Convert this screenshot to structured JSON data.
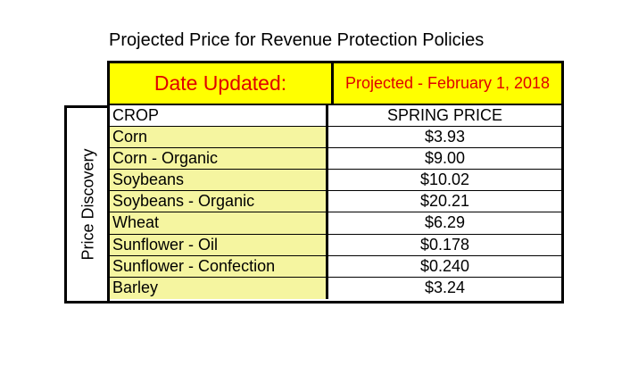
{
  "title": "Projected Price for Revenue Protection Policies",
  "header": {
    "date_label": "Date Updated:",
    "date_value": "Projected - February 1, 2018"
  },
  "side_label": "Price Discovery",
  "table": {
    "columns": [
      "CROP",
      "SPRING PRICE"
    ],
    "rows": [
      {
        "crop": "Corn",
        "price": "$3.93"
      },
      {
        "crop": "Corn - Organic",
        "price": "$9.00"
      },
      {
        "crop": "Soybeans",
        "price": "$10.02"
      },
      {
        "crop": "Soybeans - Organic",
        "price": "$20.21"
      },
      {
        "crop": "Wheat",
        "price": "$6.29"
      },
      {
        "crop": "Sunflower - Oil",
        "price": "$0.178"
      },
      {
        "crop": "Sunflower - Confection",
        "price": "$0.240"
      },
      {
        "crop": "Barley",
        "price": "$3.24"
      }
    ]
  },
  "colors": {
    "header_fill": "#ffff00",
    "header_text": "#e00000",
    "crop_fill": "#f5f5a0"
  }
}
